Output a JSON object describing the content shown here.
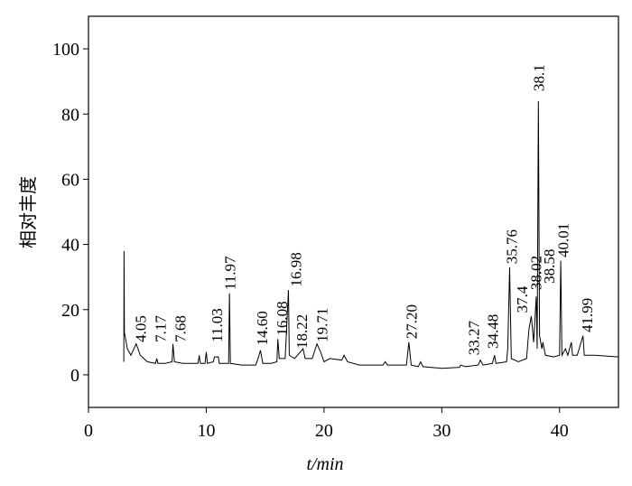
{
  "chart_data": {
    "type": "line",
    "xlabel": "t/min",
    "ylabel": "相对丰度",
    "xlim": [
      0,
      45
    ],
    "ylim": [
      -10,
      110
    ],
    "xticks": [
      0,
      10,
      20,
      30,
      40
    ],
    "yticks": [
      0,
      20,
      40,
      60,
      80,
      100
    ],
    "color": "#000000",
    "x": [
      3.0,
      3.02,
      3.05,
      3.3,
      3.6,
      4.05,
      4.4,
      5.0,
      5.7,
      5.8,
      5.9,
      6.5,
      7.1,
      7.17,
      7.3,
      8.0,
      9.3,
      9.4,
      9.5,
      9.9,
      10.0,
      10.1,
      10.6,
      10.7,
      11.03,
      11.1,
      11.9,
      11.97,
      12.05,
      13.0,
      14.2,
      14.4,
      14.6,
      14.8,
      15.5,
      16.0,
      16.08,
      16.2,
      16.7,
      16.98,
      17.05,
      17.5,
      18.22,
      18.4,
      19.0,
      19.4,
      19.71,
      20.0,
      20.5,
      21.5,
      21.7,
      22.0,
      23.0,
      25.0,
      25.2,
      25.4,
      27.0,
      27.2,
      27.4,
      28.0,
      28.2,
      28.4,
      30.0,
      31.5,
      31.6,
      32.0,
      33.1,
      33.27,
      33.5,
      34.3,
      34.48,
      34.6,
      35.5,
      35.6,
      35.76,
      35.9,
      36.5,
      37.2,
      37.4,
      37.6,
      37.8,
      38.02,
      38.1,
      38.2,
      38.3,
      38.5,
      38.58,
      38.8,
      39.5,
      40.0,
      40.1,
      40.2,
      40.5,
      40.7,
      41.0,
      41.1,
      41.5,
      41.99,
      42.1,
      43.0,
      45.0
    ],
    "values": [
      4,
      38,
      13,
      8,
      6,
      9.5,
      6,
      4,
      3.5,
      5,
      3.5,
      3.5,
      4,
      9.5,
      4,
      3.5,
      3.5,
      6,
      3.5,
      3.5,
      7,
      3.5,
      4,
      5.5,
      5.5,
      3.5,
      3.5,
      25,
      3.5,
      3,
      3,
      5,
      7.5,
      3.5,
      3.5,
      4,
      11,
      5,
      5,
      26,
      6,
      5,
      8,
      5,
      5,
      9.5,
      7,
      4,
      5,
      4.5,
      6,
      4,
      3,
      3,
      4,
      3,
      3,
      10,
      3,
      2.5,
      4,
      2.5,
      2,
      2.3,
      3,
      2.5,
      3,
      4.5,
      3,
      3.5,
      6,
      3.5,
      4,
      8,
      33,
      5,
      4,
      5,
      14,
      18,
      10,
      24,
      8,
      84,
      12,
      8,
      10,
      6,
      5.5,
      6,
      35,
      6,
      8,
      6,
      10,
      6,
      6,
      12,
      6,
      6,
      5.5
    ],
    "annotations": [
      {
        "label": "4.05",
        "x": 4.4,
        "y": 10
      },
      {
        "label": "7.17",
        "x": 6.1,
        "y": 10
      },
      {
        "label": "7.68",
        "x": 7.8,
        "y": 10
      },
      {
        "label": "11.03",
        "x": 10.9,
        "y": 10
      },
      {
        "label": "11.97",
        "x": 12.0,
        "y": 26
      },
      {
        "label": "14.60",
        "x": 14.7,
        "y": 9
      },
      {
        "label": "16.08",
        "x": 16.4,
        "y": 12
      },
      {
        "label": "16.98",
        "x": 17.6,
        "y": 27
      },
      {
        "label": "18.22",
        "x": 18.1,
        "y": 8
      },
      {
        "label": "19.71",
        "x": 19.8,
        "y": 10
      },
      {
        "label": "27.20",
        "x": 27.4,
        "y": 11
      },
      {
        "label": "33.27",
        "x": 32.7,
        "y": 6
      },
      {
        "label": "34.48",
        "x": 34.3,
        "y": 8
      },
      {
        "label": "35.76",
        "x": 35.9,
        "y": 34
      },
      {
        "label": "37.4",
        "x": 36.8,
        "y": 19
      },
      {
        "label": "38.02",
        "x": 38.0,
        "y": 26
      },
      {
        "label": "38.1",
        "x": 38.2,
        "y": 87
      },
      {
        "label": "38.58",
        "x": 39.1,
        "y": 28
      },
      {
        "label": "40.01",
        "x": 40.3,
        "y": 36
      },
      {
        "label": "41.99",
        "x": 42.3,
        "y": 13
      }
    ]
  }
}
